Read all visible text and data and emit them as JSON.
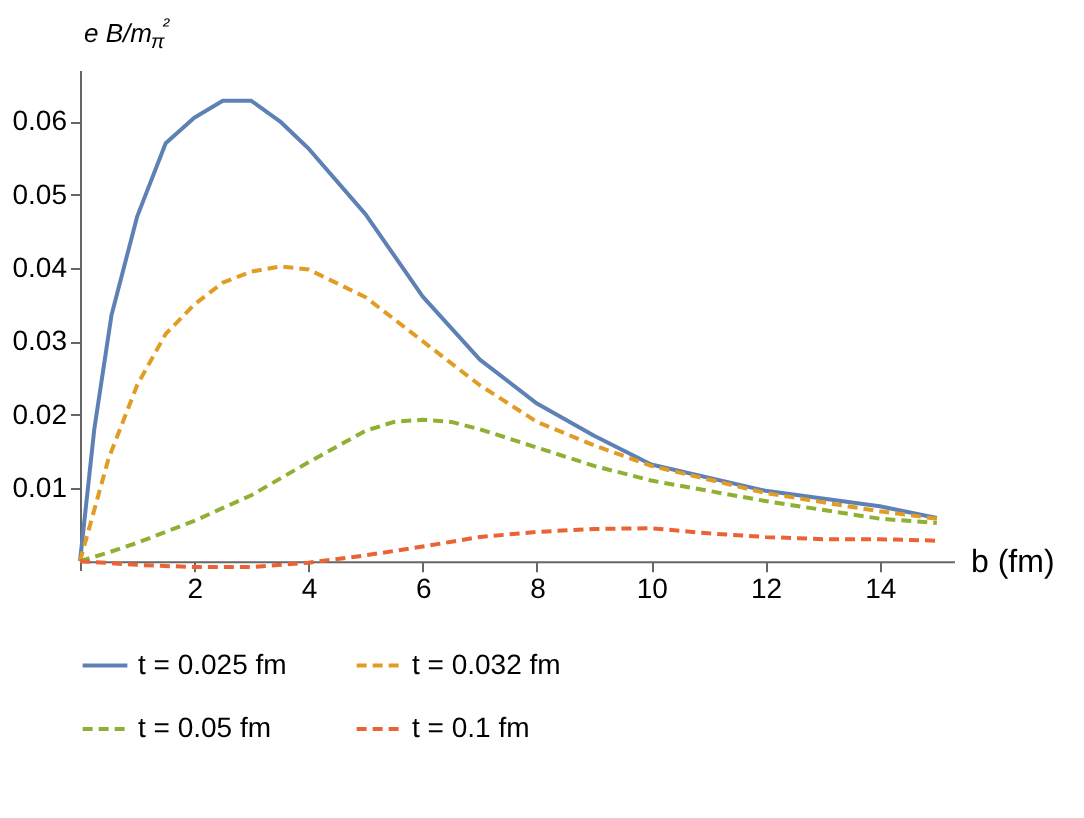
{
  "chart_data": {
    "type": "line",
    "xlabel": "b (fm)",
    "ylabel": "e B/m$_{π}$²",
    "xlim": [
      0,
      15.3
    ],
    "ylim": [
      -0.0012,
      0.067
    ],
    "xticks": [
      2,
      4,
      6,
      8,
      10,
      12,
      14
    ],
    "yticks": [
      0.01,
      0.02,
      0.03,
      0.04,
      0.05,
      0.06
    ],
    "grid": false,
    "legend": "bottom",
    "marker": "none",
    "series": [
      {
        "name": "t = 0.025 fm",
        "color": "#5e81b5",
        "line_style": "solid",
        "x": [
          0,
          0.25,
          0.55,
          1,
          1.5,
          2,
          2.5,
          3,
          3.5,
          4,
          5,
          6,
          7,
          8,
          9,
          10,
          12,
          14,
          15
        ],
        "values": [
          0,
          0.018,
          0.0335,
          0.047,
          0.057,
          0.0605,
          0.0628,
          0.0628,
          0.06,
          0.0563,
          0.0473,
          0.0361,
          0.0275,
          0.0215,
          0.0171,
          0.0132,
          0.0096,
          0.0075,
          0.0059
        ]
      },
      {
        "name": "t = 0.032 fm",
        "color": "#e19c24",
        "line_style": "dashed",
        "x": [
          0,
          0.5,
          1,
          1.5,
          2,
          2.5,
          3,
          3.5,
          4,
          5,
          6,
          7,
          8,
          9,
          10,
          12,
          14,
          15
        ],
        "values": [
          0,
          0.014,
          0.024,
          0.031,
          0.035,
          0.038,
          0.0395,
          0.0402,
          0.0398,
          0.036,
          0.03,
          0.024,
          0.019,
          0.0158,
          0.013,
          0.0093,
          0.0068,
          0.0058
        ]
      },
      {
        "name": "t = 0.05 fm",
        "color": "#8fb032",
        "line_style": "dashed",
        "x": [
          0,
          0.5,
          1,
          2,
          3,
          4,
          5,
          5.5,
          6,
          6.5,
          7,
          8,
          9,
          10,
          12,
          14,
          15
        ],
        "values": [
          0,
          0.0012,
          0.0025,
          0.0055,
          0.009,
          0.0135,
          0.0178,
          0.019,
          0.0193,
          0.019,
          0.018,
          0.0155,
          0.013,
          0.011,
          0.0082,
          0.0058,
          0.0052
        ]
      },
      {
        "name": "t = 0.1 fm",
        "color": "#eb6235",
        "line_style": "dashed",
        "x": [
          0,
          1,
          2,
          3,
          4,
          5,
          6,
          7,
          8,
          9,
          10,
          11,
          12,
          13,
          14,
          15
        ],
        "values": [
          0,
          -0.0005,
          -0.0008,
          -0.0008,
          -0.0002,
          0.0008,
          0.002,
          0.0033,
          0.004,
          0.0044,
          0.0045,
          0.0038,
          0.0033,
          0.003,
          0.003,
          0.0028
        ]
      }
    ]
  }
}
